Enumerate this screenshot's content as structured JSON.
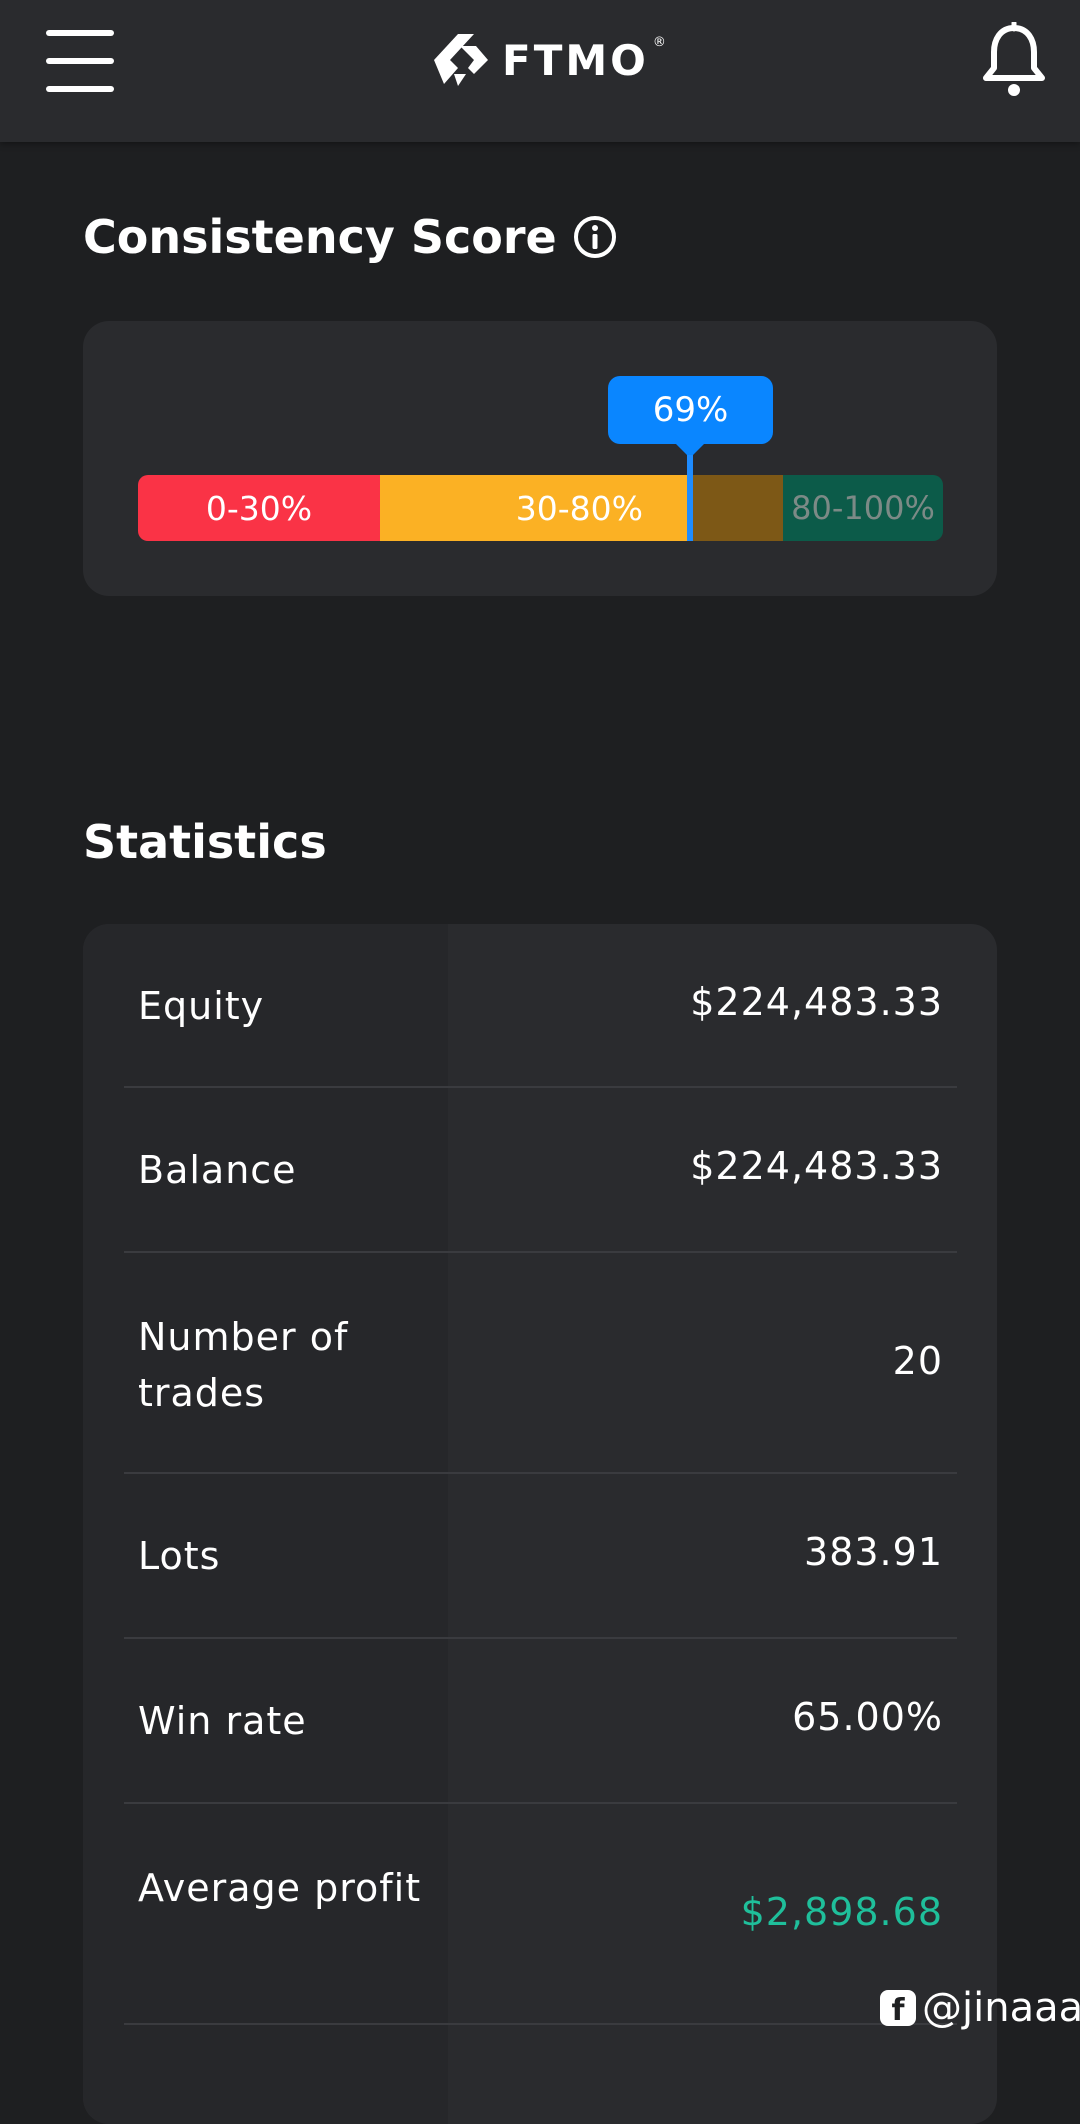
{
  "header": {
    "brand": "FTMO",
    "brand_mark": "®",
    "menu_icon": "hamburger-menu-icon",
    "bell_icon": "bell-icon"
  },
  "consistency": {
    "title": "Consistency Score",
    "info_icon": "info-icon",
    "value_label": "69%",
    "value": 69,
    "segments": [
      {
        "label": "0-30%",
        "color": "#fa3346"
      },
      {
        "label": "30-80%",
        "color": "#fbb124"
      },
      {
        "label": "80-100%",
        "color": "#0c5b49"
      }
    ],
    "marker_color": "#0a86ff"
  },
  "statistics": {
    "title": "Statistics",
    "rows": [
      {
        "label": "Equity",
        "value": "$224,483.33"
      },
      {
        "label": "Balance",
        "value": "$224,483.33"
      },
      {
        "label": "Number of trades",
        "value": "20"
      },
      {
        "label": "Lots",
        "value": "383.91"
      },
      {
        "label": "Win rate",
        "value": "65.00%"
      },
      {
        "label": "Average profit",
        "value": "$2,898.68"
      }
    ],
    "profit_color": "#1fbf9b"
  },
  "watermark": {
    "icon": "facebook-icon",
    "text": "@jinaaa"
  }
}
